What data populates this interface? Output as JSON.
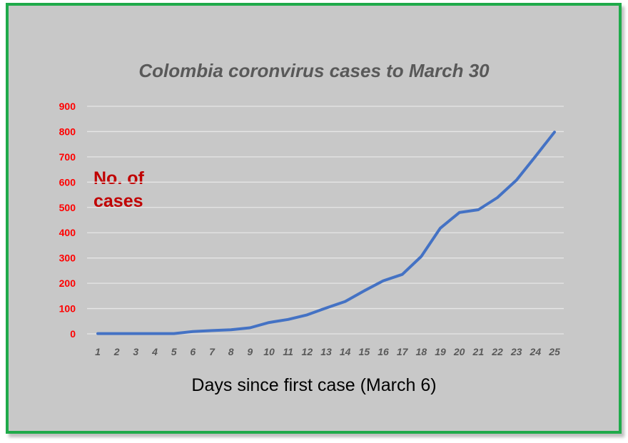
{
  "chart_data": {
    "type": "line",
    "title": "Colombia coronvirus cases to March 30",
    "xlabel": "Days since first case (March 6)",
    "ylabel": "No. of cases",
    "x": [
      1,
      2,
      3,
      4,
      5,
      6,
      7,
      8,
      9,
      10,
      11,
      12,
      13,
      14,
      15,
      16,
      17,
      18,
      19,
      20,
      21,
      22,
      23,
      24,
      25
    ],
    "y_ticks": [
      0,
      100,
      200,
      300,
      400,
      500,
      600,
      700,
      800,
      900
    ],
    "ylim": [
      0,
      900
    ],
    "grid": true,
    "legend": "none",
    "series": [
      {
        "values": [
          1,
          1,
          1,
          1,
          1,
          9,
          13,
          16,
          24,
          45,
          57,
          75,
          102,
          128,
          170,
          210,
          235,
          306,
          418,
          480,
          491,
          539,
          608,
          702,
          798
        ]
      }
    ],
    "colors": {
      "line": "#4472c4",
      "title": "#595959",
      "ytick": "#ff0000",
      "ylabel": "#c00000",
      "border": "#1faa4a",
      "background": "#c8c8c8"
    }
  }
}
